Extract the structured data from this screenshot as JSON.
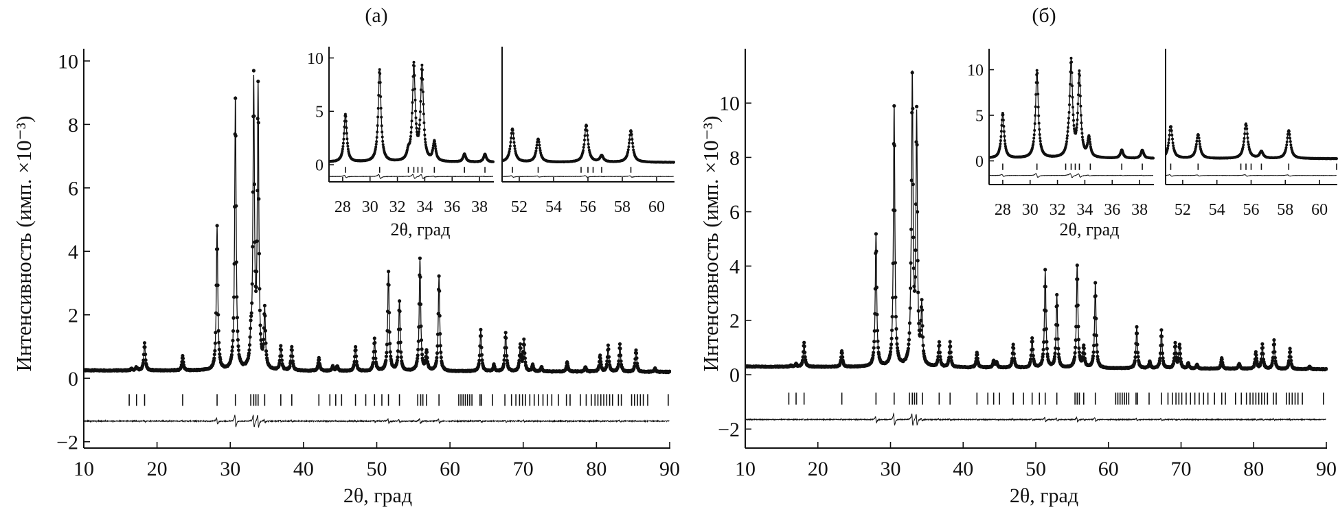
{
  "chart_data": [
    {
      "type": "scatter",
      "panel_label": "(а)",
      "xlabel": "2θ, град",
      "ylabel": "Интенсивность (имп. ×10⁻³)",
      "xlim": [
        10,
        90
      ],
      "ylim": [
        -2.2,
        10.3
      ],
      "xticks": [
        10,
        20,
        30,
        40,
        50,
        60,
        70,
        80,
        90
      ],
      "yticks": [
        -2,
        0,
        2,
        4,
        6,
        8,
        10
      ],
      "background": [
        0.25,
        0.2
      ],
      "peak_width": 0.12,
      "peaks": [
        [
          16.5,
          0.05
        ],
        [
          17.2,
          0.1
        ],
        [
          18.3,
          0.85
        ],
        [
          23.5,
          0.45
        ],
        [
          28.2,
          4.5
        ],
        [
          30.7,
          8.6
        ],
        [
          32.8,
          0.7
        ],
        [
          33.2,
          8.9
        ],
        [
          33.8,
          8.7
        ],
        [
          34.7,
          1.8
        ],
        [
          36.9,
          0.75
        ],
        [
          38.4,
          0.75
        ],
        [
          42.1,
          0.4
        ],
        [
          44.0,
          0.15
        ],
        [
          44.6,
          0.15
        ],
        [
          47.1,
          0.75
        ],
        [
          49.7,
          1.0
        ],
        [
          51.6,
          3.15
        ],
        [
          53.1,
          2.2
        ],
        [
          55.9,
          3.5
        ],
        [
          56.8,
          0.6
        ],
        [
          58.5,
          3.0
        ],
        [
          64.2,
          1.3
        ],
        [
          66.0,
          0.2
        ],
        [
          67.6,
          1.25
        ],
        [
          69.6,
          0.8
        ],
        [
          70.1,
          0.95
        ],
        [
          71.3,
          0.2
        ],
        [
          72.5,
          0.15
        ],
        [
          76.0,
          0.3
        ],
        [
          78.5,
          0.15
        ],
        [
          80.5,
          0.5
        ],
        [
          81.6,
          0.8
        ],
        [
          83.2,
          0.85
        ],
        [
          85.4,
          0.7
        ],
        [
          88.0,
          0.1
        ]
      ],
      "reflections": [
        16.2,
        17.2,
        18.3,
        23.5,
        28.2,
        30.7,
        32.8,
        33.2,
        33.5,
        33.8,
        34.7,
        36.9,
        38.4,
        42.1,
        43.6,
        44.4,
        45.2,
        47.1,
        48.5,
        49.7,
        50.7,
        51.6,
        53.1,
        55.6,
        56.0,
        56.3,
        56.8,
        58.5,
        61.2,
        61.5,
        61.8,
        62.1,
        62.4,
        62.7,
        63.0,
        64.1,
        64.3,
        65.8,
        67.5,
        68.4,
        69.0,
        69.5,
        69.9,
        70.3,
        70.9,
        71.5,
        72.1,
        72.7,
        73.3,
        73.9,
        74.8,
        75.9,
        76.4,
        77.8,
        78.6,
        79.3,
        79.8,
        80.2,
        80.6,
        81.0,
        81.4,
        81.8,
        82.2,
        83.0,
        83.4,
        84.8,
        85.2,
        85.6,
        86.0,
        86.4,
        87.0,
        89.8
      ],
      "reflection_range": [
        -0.5,
        -0.87
      ],
      "difference_level": -1.35,
      "insets": [
        {
          "xlim": [
            27,
            39
          ],
          "xticks": [
            28,
            30,
            32,
            34,
            36,
            38
          ],
          "ylim": [
            -1.6,
            10.8
          ],
          "yticks": [
            0,
            5,
            10
          ],
          "xlabel": "2θ, град",
          "reflection_range": [
            -0.2,
            -0.75
          ],
          "difference_level": -1.1
        },
        {
          "xlim": [
            51,
            61
          ],
          "xticks": [
            52,
            54,
            56,
            58,
            60
          ],
          "ylim": [
            -1.6,
            10.8
          ],
          "yticks": [],
          "reflection_range": [
            -0.2,
            -0.75
          ],
          "difference_level": -1.1
        }
      ]
    },
    {
      "type": "scatter",
      "panel_label": "(б)",
      "xlabel": "2θ, град",
      "ylabel": "Интенсивность (имп. ×10⁻³)",
      "xlim": [
        10,
        90
      ],
      "ylim": [
        -2.7,
        11.9
      ],
      "xticks": [
        10,
        20,
        30,
        40,
        50,
        60,
        70,
        80,
        90
      ],
      "yticks": [
        -2,
        0,
        2,
        4,
        6,
        8,
        10
      ],
      "background": [
        0.3,
        0.2
      ],
      "peak_width": 0.12,
      "peaks": [
        [
          16.3,
          0.05
        ],
        [
          17.0,
          0.1
        ],
        [
          18.1,
          0.9
        ],
        [
          23.3,
          0.6
        ],
        [
          28.0,
          4.9
        ],
        [
          30.5,
          9.6
        ],
        [
          32.8,
          0.9
        ],
        [
          33.0,
          10.3
        ],
        [
          33.6,
          9.0
        ],
        [
          34.3,
          2.1
        ],
        [
          36.7,
          0.9
        ],
        [
          38.2,
          0.9
        ],
        [
          41.9,
          0.55
        ],
        [
          44.2,
          0.25
        ],
        [
          44.6,
          0.2
        ],
        [
          46.9,
          0.85
        ],
        [
          49.5,
          1.1
        ],
        [
          51.3,
          3.55
        ],
        [
          52.9,
          2.65
        ],
        [
          55.7,
          3.8
        ],
        [
          56.6,
          0.75
        ],
        [
          58.2,
          3.1
        ],
        [
          63.9,
          1.5
        ],
        [
          65.7,
          0.25
        ],
        [
          67.3,
          1.4
        ],
        [
          69.2,
          0.9
        ],
        [
          69.8,
          0.85
        ],
        [
          71.0,
          0.2
        ],
        [
          72.2,
          0.15
        ],
        [
          75.6,
          0.4
        ],
        [
          78.0,
          0.2
        ],
        [
          80.3,
          0.6
        ],
        [
          81.2,
          0.9
        ],
        [
          82.8,
          1.05
        ],
        [
          85.0,
          0.75
        ],
        [
          87.7,
          0.1
        ]
      ],
      "reflections": [
        16.0,
        17.0,
        18.1,
        23.3,
        28.0,
        30.5,
        32.6,
        33.0,
        33.3,
        33.6,
        34.4,
        36.7,
        38.2,
        41.9,
        43.4,
        44.2,
        45.0,
        46.9,
        48.3,
        49.5,
        50.5,
        51.3,
        52.9,
        55.4,
        55.7,
        56.0,
        56.6,
        58.2,
        61.0,
        61.3,
        61.6,
        61.9,
        62.2,
        62.5,
        62.8,
        63.8,
        64.0,
        65.6,
        67.3,
        68.2,
        68.8,
        69.3,
        69.7,
        70.1,
        70.7,
        71.3,
        71.9,
        72.5,
        73.1,
        73.7,
        74.6,
        75.6,
        76.1,
        77.5,
        78.3,
        79.0,
        79.5,
        79.9,
        80.3,
        80.7,
        81.1,
        81.5,
        81.9,
        82.7,
        83.1,
        84.5,
        84.9,
        85.3,
        85.7,
        86.1,
        86.7,
        89.6
      ],
      "reflection_range": [
        -0.66,
        -1.1
      ],
      "difference_level": -1.65,
      "insets": [
        {
          "xlim": [
            27,
            39
          ],
          "xticks": [
            28,
            30,
            32,
            34,
            36,
            38
          ],
          "ylim": [
            -2.6,
            12
          ],
          "yticks": [
            0,
            5,
            10
          ],
          "xlabel": "2θ, град",
          "reflection_range": [
            -0.3,
            -1.0
          ],
          "difference_level": -1.6
        },
        {
          "xlim": [
            51,
            61
          ],
          "xticks": [
            52,
            54,
            56,
            58,
            60
          ],
          "ylim": [
            -2.6,
            12
          ],
          "yticks": [],
          "reflection_range": [
            -0.3,
            -1.0
          ],
          "difference_level": -1.6
        }
      ]
    }
  ]
}
